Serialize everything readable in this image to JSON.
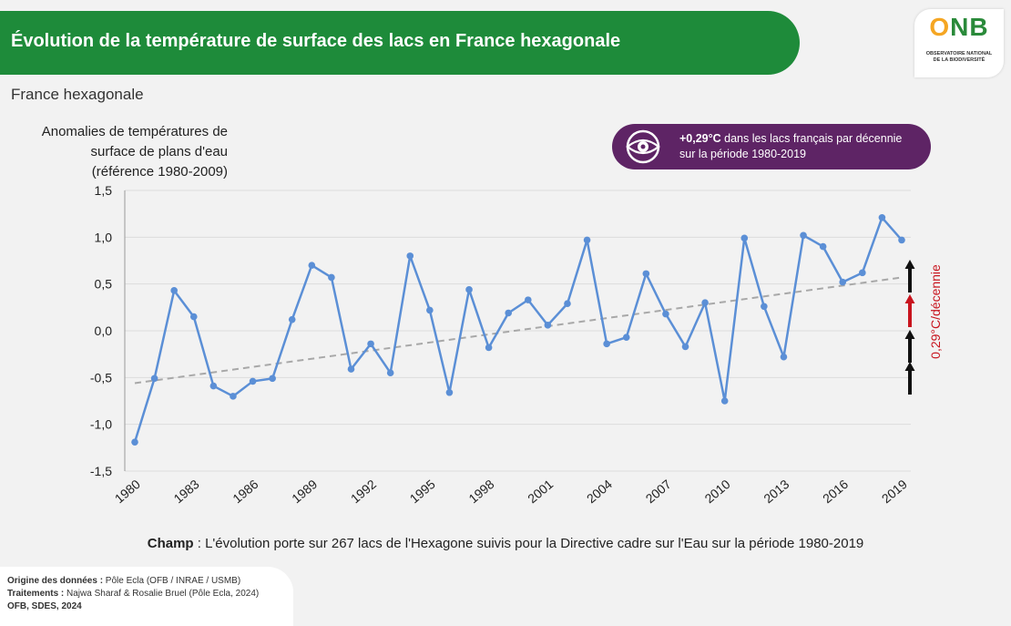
{
  "header": {
    "title": "Évolution de la température de surface des lacs en France hexagonale"
  },
  "logo": {
    "letters_o": "O",
    "letters_nb": "NB",
    "line1": "OBSERVATOIRE NATIONAL",
    "line2": "DE LA BIODIVERSITÉ"
  },
  "subtitle": "France hexagonale",
  "y_axis_title": {
    "line1": "Anomalies de températures de",
    "line2": "surface de plans d'eau",
    "line3": "(référence 1980-2009)"
  },
  "callout": {
    "icon": "eye-icon",
    "bold": "+0,29°C",
    "text1": " dans les lacs français par décennie",
    "text2": "sur la période 1980-2019"
  },
  "trend_label": "0,29°C/décennie",
  "champ": {
    "bold": "Champ",
    "text": " : L'évolution porte sur 267 lacs de l'Hexagone suivis pour la Directive cadre sur l'Eau sur la période 1980-2019"
  },
  "sources": {
    "origine_label": "Origine des données :",
    "origine_value": " Pôle Ecla (OFB / INRAE / USMB)",
    "traitements_label": "Traitements :",
    "traitements_value": " Najwa Sharaf & Rosalie Bruel (Pôle Ecla, 2024)",
    "credit": "OFB, SDES, 2024"
  },
  "colors": {
    "header": "#1e8b3a",
    "line": "#5b8fd6",
    "trend": "#a8a8a8",
    "callout": "#5e2465",
    "accent_red": "#c8141e"
  },
  "chart_data": {
    "type": "line",
    "x": [
      1980,
      1981,
      1982,
      1983,
      1984,
      1985,
      1986,
      1987,
      1988,
      1989,
      1990,
      1991,
      1992,
      1993,
      1994,
      1995,
      1996,
      1997,
      1998,
      1999,
      2000,
      2001,
      2002,
      2003,
      2004,
      2005,
      2006,
      2007,
      2008,
      2009,
      2010,
      2011,
      2012,
      2013,
      2014,
      2015,
      2016,
      2017,
      2018,
      2019
    ],
    "series": [
      {
        "values": [
          -1.19,
          -0.51,
          0.43,
          0.15,
          -0.59,
          -0.7,
          -0.54,
          -0.51,
          0.12,
          0.7,
          0.57,
          -0.41,
          -0.14,
          -0.45,
          0.8,
          0.22,
          -0.66,
          0.44,
          -0.18,
          0.19,
          0.33,
          0.06,
          0.29,
          0.97,
          -0.14,
          -0.07,
          0.61,
          0.18,
          -0.17,
          0.3,
          -0.75,
          0.99,
          0.26,
          -0.28,
          1.02,
          0.9,
          0.52,
          0.62,
          1.21,
          0.97
        ]
      },
      {
        "values": [
          -0.56,
          0.57
        ],
        "x": [
          1980,
          2019
        ],
        "style": "dashed"
      }
    ],
    "xticks": [
      "1980",
      "1983",
      "1986",
      "1989",
      "1992",
      "1995",
      "1998",
      "2001",
      "2004",
      "2007",
      "2010",
      "2013",
      "2016",
      "2019"
    ],
    "yticks": [
      "1,5",
      "1,0",
      "0,5",
      "0,0",
      "-0,5",
      "-1,0",
      "-1,5"
    ],
    "ylim": [
      -1.5,
      1.5
    ],
    "grid": true
  }
}
